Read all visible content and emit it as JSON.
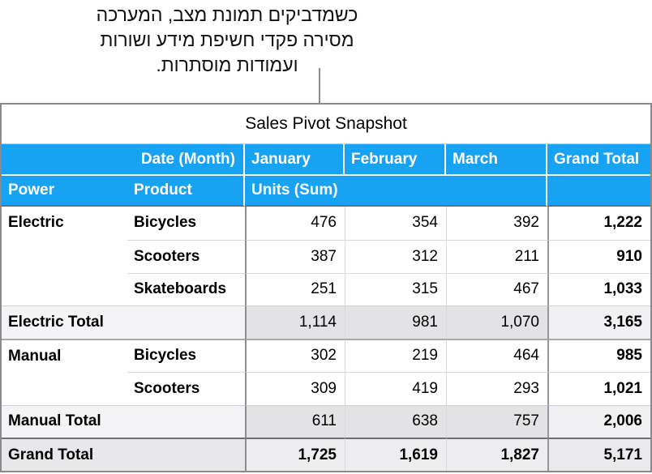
{
  "annotation": {
    "line1": "כשמדביקים תמונת מצב, המערכה",
    "line2": "מסירה פקדי חשיפת מידע ושורות",
    "line3": "ועמודות מוסתרות."
  },
  "table": {
    "title": "Sales Pivot Snapshot",
    "header": {
      "date_field": "Date (Month)",
      "col_jan": "January",
      "col_feb": "February",
      "col_mar": "March",
      "col_grand": "Grand Total",
      "row_power": "Power",
      "row_product": "Product",
      "values_field": "Units (Sum)"
    },
    "rows": [
      {
        "power": "Electric",
        "product": "Bicycles",
        "jan": "476",
        "feb": "354",
        "mar": "392",
        "total": "1,222"
      },
      {
        "product": "Scooters",
        "jan": "387",
        "feb": "312",
        "mar": "211",
        "total": "910"
      },
      {
        "product": "Skateboards",
        "jan": "251",
        "feb": "315",
        "mar": "467",
        "total": "1,033"
      },
      {
        "label": "Electric Total",
        "jan": "1,114",
        "feb": "981",
        "mar": "1,070",
        "total": "3,165"
      },
      {
        "power": "Manual",
        "product": "Bicycles",
        "jan": "302",
        "feb": "219",
        "mar": "464",
        "total": "985"
      },
      {
        "product": "Scooters",
        "jan": "309",
        "feb": "419",
        "mar": "293",
        "total": "1,021"
      },
      {
        "label": "Manual Total",
        "jan": "611",
        "feb": "638",
        "mar": "757",
        "total": "2,006"
      },
      {
        "label": "Grand Total",
        "jan": "1,725",
        "feb": "1,619",
        "mar": "1,827",
        "total": "5,171"
      }
    ],
    "colors": {
      "header_blue": "#18a2f4",
      "header_text": "#ffffff",
      "total_label_bg": "#f4f4f6",
      "total_cell_bg": "#e3e3e6",
      "grand_total_col_bg": "#f1f1f3",
      "grand_total_row_bg": "#e9e9eb",
      "strong_border": "#8d8d91",
      "light_border": "#d9d9db"
    }
  }
}
